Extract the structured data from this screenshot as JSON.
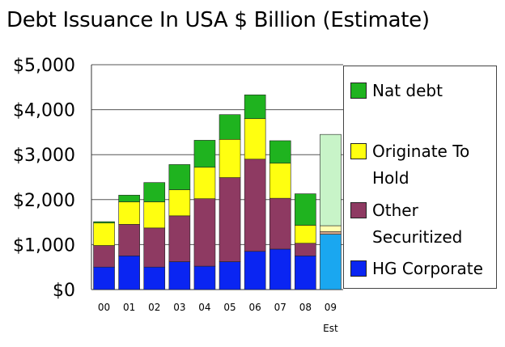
{
  "chart_data": {
    "type": "bar",
    "stacked": true,
    "title": "Debt Issuance In USA $ Billion (Estimate)",
    "categories": [
      "00",
      "01",
      "02",
      "03",
      "04",
      "05",
      "06",
      "07",
      "08",
      "09"
    ],
    "category_sublabels": {
      "09": "Est"
    },
    "ylim": [
      0,
      5000
    ],
    "yticks": [
      "$0",
      "$1,000",
      "$2,000",
      "$3,000",
      "$4,000",
      "$5,000"
    ],
    "series": [
      {
        "name": "HG Corporate",
        "color": "#0a25f2",
        "values": [
          500,
          750,
          500,
          620,
          520,
          620,
          850,
          900,
          750,
          1230
        ]
      },
      {
        "name": "Other Securitized",
        "color": "#8e3a62",
        "values": [
          480,
          700,
          870,
          1020,
          1500,
          1870,
          2050,
          1130,
          280,
          60
        ]
      },
      {
        "name": "Originate To Hold",
        "color": "#ffff10",
        "values": [
          500,
          500,
          580,
          580,
          700,
          850,
          900,
          780,
          400,
          130
        ]
      },
      {
        "name": "Nat debt",
        "color": "#1fb31f",
        "values": [
          30,
          150,
          430,
          560,
          600,
          550,
          530,
          500,
          700,
          2030
        ]
      }
    ],
    "estimate_bar": {
      "category": "09",
      "colors": {
        "HG Corporate": "#1aa7f0",
        "Other Securitized": "#d2a98e",
        "Originate To Hold": "#ffffb0",
        "Nat debt": "#c8f4c8"
      }
    },
    "legend": [
      {
        "label": "Nat debt",
        "series": "Nat debt"
      },
      {
        "label": "Originate To Hold",
        "series": "Originate To Hold"
      },
      {
        "label": "Other Securitized",
        "series": "Other Securitized"
      },
      {
        "label": "HG Corporate",
        "series": "HG Corporate"
      }
    ],
    "legend_position": "right"
  }
}
